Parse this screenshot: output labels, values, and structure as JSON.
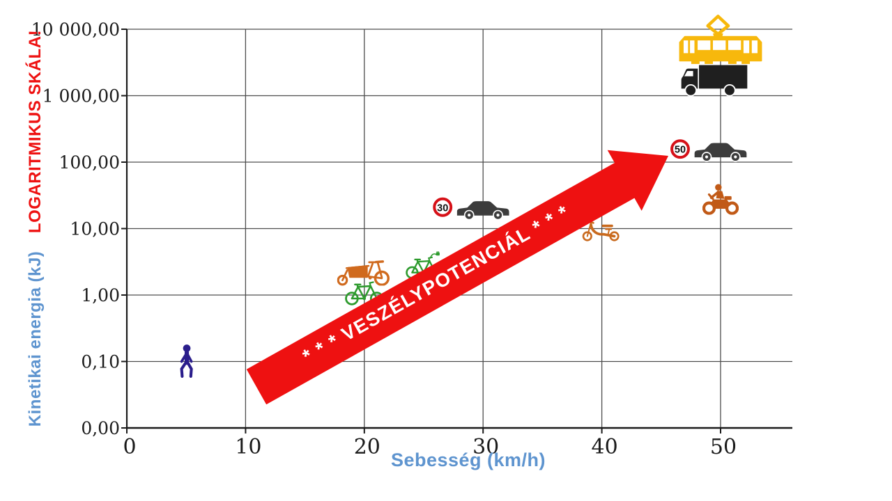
{
  "y_axis": {
    "title_blue": "Kinetikai energia (kJ)",
    "title_red": "LOGARITMIKUS SKÁLA!",
    "tick_labels": [
      "10 000,00",
      "1 000,00",
      "100,00",
      "10,00",
      "1,00",
      "0,10",
      "0,00"
    ]
  },
  "x_axis": {
    "title": "Sebesség (km/h)",
    "tick_labels": [
      "0",
      "10",
      "20",
      "30",
      "40",
      "50"
    ]
  },
  "colors": {
    "accent_blue": "#5E94CF",
    "banner_red": "#EE1111",
    "sign_ring_red": "#D61118",
    "grid": "#4D4D4D",
    "axis": "#1A1A1A",
    "tick_text": "#1A1A1A"
  },
  "chart_data": {
    "type": "scatter",
    "title": "",
    "xlabel": "Sebesség (km/h)",
    "ylabel": "Kinetikai energia (kJ)",
    "y_scale": "log10",
    "xlim": [
      0,
      56
    ],
    "ylim_kj": [
      0.01,
      10000
    ],
    "x_ticks": [
      0,
      10,
      20,
      30,
      40,
      50
    ],
    "y_tick_values": [
      10000,
      1000,
      100,
      10,
      1,
      0.1,
      0.01
    ],
    "grid": true,
    "points": [
      {
        "name": "pedestrian",
        "icon": "pedestrian",
        "speed_kmh": 5,
        "energy_kj": 0.1,
        "color": "#2B1E8C"
      },
      {
        "name": "bicycle",
        "icon": "bicycle",
        "speed_kmh": 20,
        "energy_kj": 1.1,
        "color": "#2E9B2E"
      },
      {
        "name": "cargo-bike",
        "icon": "cargo-bike",
        "speed_kmh": 20,
        "energy_kj": 2.3,
        "color": "#D06A1E"
      },
      {
        "name": "e-bike",
        "icon": "e-bike",
        "speed_kmh": 25,
        "energy_kj": 2.8,
        "color": "#2E9B2E"
      },
      {
        "name": "car-at-30",
        "icon": "car",
        "sign": "30",
        "speed_kmh": 30,
        "energy_kj": 20,
        "color": "#3C3C3C"
      },
      {
        "name": "moped",
        "icon": "moped",
        "speed_kmh": 40,
        "energy_kj": 10,
        "color": "#C96A1E"
      },
      {
        "name": "motorcycle",
        "icon": "motorcycle",
        "speed_kmh": 50,
        "energy_kj": 28,
        "color": "#C15A17"
      },
      {
        "name": "car-at-50",
        "icon": "car",
        "sign": "50",
        "speed_kmh": 50,
        "energy_kj": 150,
        "color": "#3C3C3C"
      },
      {
        "name": "truck",
        "icon": "truck",
        "speed_kmh": 50,
        "energy_kj": 1700,
        "color": "#1F1F1F"
      },
      {
        "name": "tram",
        "icon": "tram",
        "speed_kmh": 50,
        "energy_kj": 6000,
        "color": "#F7B80C"
      }
    ],
    "annotation": {
      "text": "* * * VESZÉLYPOTENCIÁL * * *",
      "direction": "diagonal-up-right"
    }
  }
}
